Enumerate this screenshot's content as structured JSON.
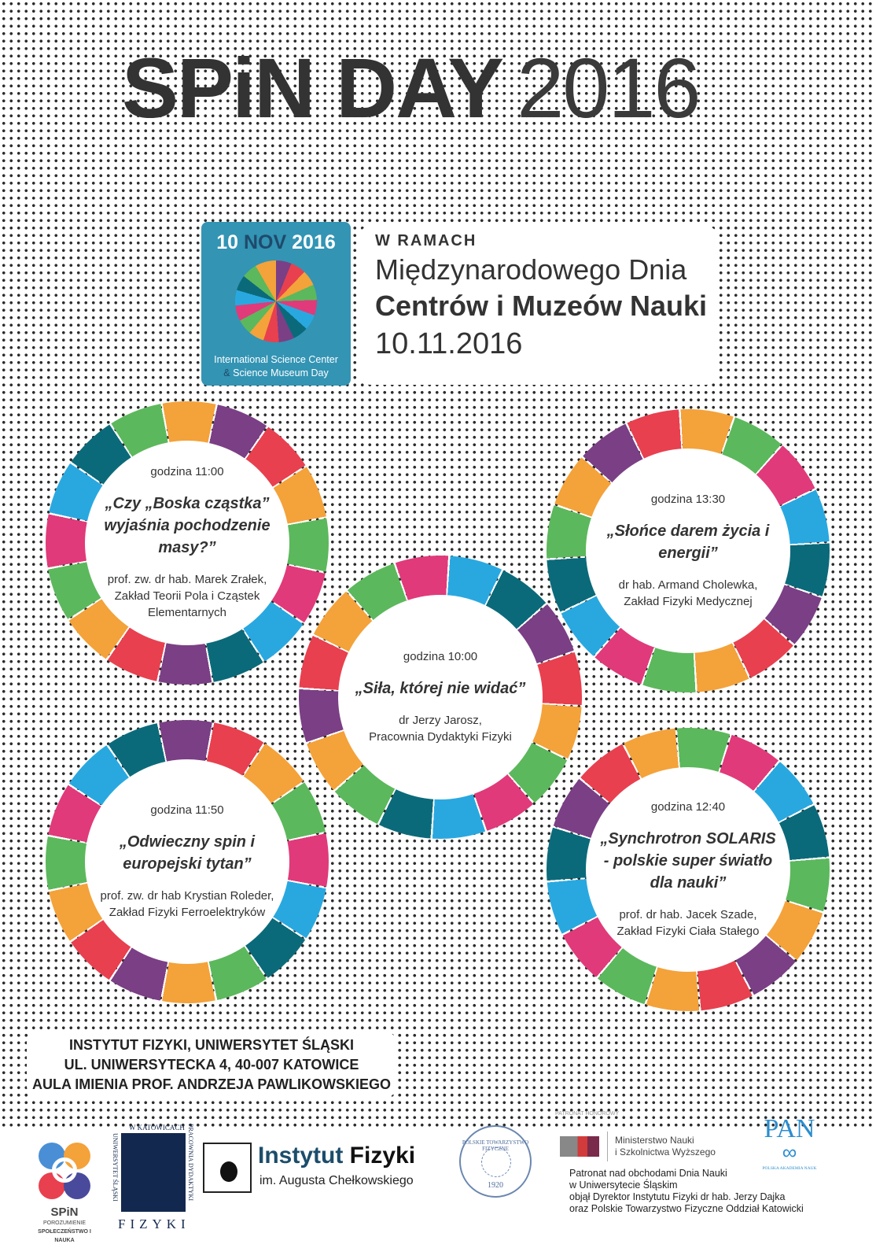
{
  "header": {
    "title_bold": "SPiN DAY",
    "title_year": "2016"
  },
  "badge": {
    "date_day": "10",
    "date_month": "NOV",
    "date_year": "2016",
    "line1": "International Science Center",
    "amp": "&",
    "line2": "Science Museum Day"
  },
  "info": {
    "pre": "W RAMACH",
    "line1": "Międzynarodowego Dnia",
    "line2": "Centrów i Muzeów Nauki",
    "date": "10.11.2016"
  },
  "ring_colors": [
    "#f4a23a",
    "#7b3f85",
    "#e8404f",
    "#f4a23a",
    "#5cb85c",
    "#e03a7a",
    "#29a8e0",
    "#0b6a7a",
    "#7b3f85",
    "#e8404f",
    "#f4a23a",
    "#5cb85c",
    "#e03a7a",
    "#29a8e0",
    "#0b6a7a",
    "#5cb85c"
  ],
  "talks": [
    {
      "time": "godzina 11:00",
      "title": "„Czy „Boska cząstka” wyjaśnia pochodzenie masy?”",
      "speaker": "prof. zw. dr hab. Marek Zrałek,",
      "dept": "Zakład Teorii Pola i Cząstek Elementarnych"
    },
    {
      "time": "godzina 13:30",
      "title": "„Słońce darem życia i energii”",
      "speaker": "dr hab. Armand Cholewka,",
      "dept": "Zakład Fizyki Medycznej"
    },
    {
      "time": "godzina 10:00",
      "title": "„Siła, której nie widać”",
      "speaker": "dr Jerzy Jarosz,",
      "dept": "Pracownia Dydaktyki Fizyki"
    },
    {
      "time": "godzina 11:50",
      "title": "„Odwieczny spin i europejski tytan”",
      "speaker": "prof. zw. dr hab Krystian Roleder,",
      "dept": "Zakład Fizyki Ferroelektryków"
    },
    {
      "time": "godzina 12:40",
      "title": "„Synchrotron SOLARIS - polskie super światło dla nauki”",
      "speaker": "prof. dr hab. Jacek Szade,",
      "dept": "Zakład Fizyki Ciała Stałego"
    }
  ],
  "venue": {
    "line1": "INSTYTUT FIZYKI, UNIWERSYTET ŚLĄSKI",
    "line2": "UL. UNIWERSYTECKA 4, 40-007 KATOWICE",
    "line3": "AULA IMIENIA PROF. ANDRZEJA PAWLIKOWSKIEGO"
  },
  "logos": {
    "spin_name": "SPiN",
    "spin_tag1": "POROZUMIENIE",
    "spin_tag2": "SPOŁECZEŃSTWO I NAUKA",
    "pdf_left": "UNIWERSYTET ŚLĄSKI",
    "pdf_top": "W KATOWICACH",
    "pdf_right": "PRACOWNIA DYDAKTYKI",
    "pdf_bottom": "FIZYKI",
    "ifz_a": "Instytut",
    "ifz_b": "Fizyki",
    "ifz_sub": "im. Augusta Chełkowskiego",
    "ptf_text": "POLSKIE TOWARZYSTWO FIZYCZNE",
    "ptf_year": "1920",
    "patronage": "PATRONAT HONOROWY",
    "ministry1": "Ministerstwo Nauki",
    "ministry2": "i Szkolnictwa Wyższego",
    "pan": "PAN",
    "pan_sub": "POLSKA AKADEMIA NAUK"
  },
  "note": {
    "l1": "Patronat nad obchodami Dnia Nauki",
    "l2": "w Uniwersytecie Śląskim",
    "l3": "objął Dyrektor Instytutu Fizyki dr hab. Jerzy Dajka",
    "l4": "oraz Polskie Towarzystwo Fizyczne Oddział Katowicki"
  }
}
